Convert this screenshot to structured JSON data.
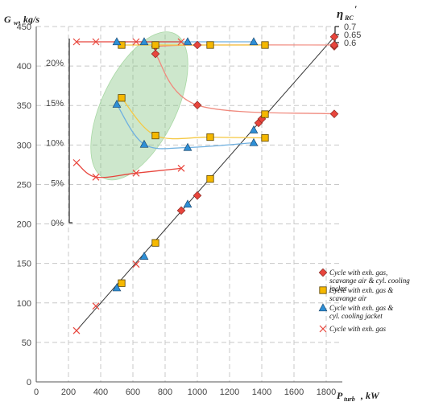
{
  "chart_data": {
    "type": "scatter",
    "title": "",
    "xlabel_main": "P",
    "xlabel_sub": "turb",
    "xlabel_unit": ", kW",
    "ylabel_main": "G",
    "ylabel_sub": "w",
    "ylabel_unit": ", kg/s",
    "y2label_main": "η",
    "y2label_sub": "RC",
    "y2label_prime": "′",
    "xlim": [
      0,
      1900
    ],
    "ylim": [
      0,
      450
    ],
    "x_ticks": [
      "0",
      "200",
      "400",
      "600",
      "800",
      "1000",
      "1200",
      "1400",
      "1600",
      "1800"
    ],
    "y_ticks": [
      "0",
      "50",
      "100",
      "150",
      "200",
      "250",
      "300",
      "350",
      "400",
      "450"
    ],
    "y_pct_ticks": [
      "0%",
      "5%",
      "10%",
      "15%",
      "20%"
    ],
    "y_eta_ticks": [
      "0.6",
      "0.65",
      "0.7"
    ],
    "grid": true,
    "legend_position": "bottom-right",
    "colors": {
      "red": "#e8453c",
      "orange": "#f5b800",
      "blue": "#2e8fd6",
      "cross": "#e8453c",
      "regression": "#333333",
      "ellipse": "#7cc07a",
      "fit_red": "#f08a7e",
      "fit_orange": "#f5c842",
      "fit_blue": "#6fb0e0",
      "fit_cross": "#e8453c"
    },
    "legend": [
      {
        "label": "Cycle with  exh. gas,  scavange air & cyl. cooling jacket",
        "marker": "diamond"
      },
      {
        "label": "Cycle with  exh. gas & scavange air",
        "marker": "square"
      },
      {
        "label": "Cycle with  exh. gas &  cyl. cooling jacket",
        "marker": "triangle"
      },
      {
        "label": "Cycle with  exh. gas",
        "marker": "cross"
      }
    ],
    "series": [
      {
        "name": "Cycle with  exh. gas,  scavange air & cyl. cooling jacket",
        "marker": "diamond",
        "gw": [
          [
            900,
            217
          ],
          [
            1000,
            236
          ],
          [
            1380,
            328
          ],
          [
            1400,
            333
          ],
          [
            1850,
            437
          ],
          [
            1850,
            425
          ]
        ],
        "pct": [
          [
            740,
            21.1
          ],
          [
            1000,
            14.7
          ],
          [
            1850,
            13.6
          ]
        ],
        "eta": [
          [
            740,
            0.576
          ],
          [
            1000,
            0.585
          ],
          [
            1850,
            0.585
          ]
        ]
      },
      {
        "name": "Cycle with  exh. gas & scavange air",
        "marker": "square",
        "gw": [
          [
            530,
            125
          ],
          [
            740,
            176
          ],
          [
            1080,
            257
          ],
          [
            1420,
            339
          ]
        ],
        "pct": [
          [
            530,
            15.6
          ],
          [
            740,
            10.9
          ],
          [
            1080,
            10.7
          ],
          [
            1420,
            10.6
          ]
        ],
        "eta": [
          [
            530,
            0.585
          ],
          [
            740,
            0.585
          ],
          [
            1080,
            0.585
          ],
          [
            1420,
            0.585
          ]
        ]
      },
      {
        "name": "Cycle with  exh. gas &  cyl. cooling jacket",
        "marker": "triangle",
        "gw": [
          [
            500,
            119
          ],
          [
            670,
            159
          ],
          [
            940,
            225
          ],
          [
            1350,
            319
          ]
        ],
        "pct": [
          [
            500,
            14.8
          ],
          [
            670,
            9.8
          ],
          [
            940,
            9.4
          ],
          [
            1350,
            10.0
          ]
        ],
        "eta": [
          [
            500,
            0.605
          ],
          [
            670,
            0.605
          ],
          [
            940,
            0.605
          ],
          [
            1350,
            0.605
          ]
        ]
      },
      {
        "name": "Cycle with  exh. gas",
        "marker": "cross",
        "gw": [
          [
            250,
            65
          ],
          [
            370,
            96
          ],
          [
            620,
            149
          ]
        ],
        "pct": [
          [
            250,
            7.5
          ],
          [
            370,
            5.7
          ],
          [
            620,
            6.2
          ],
          [
            900,
            6.8
          ]
        ],
        "eta": [
          [
            250,
            0.605
          ],
          [
            370,
            0.605
          ],
          [
            620,
            0.605
          ],
          [
            900,
            0.605
          ]
        ]
      }
    ],
    "regression": {
      "x": [
        250,
        1850
      ],
      "y": [
        65,
        437
      ]
    }
  }
}
